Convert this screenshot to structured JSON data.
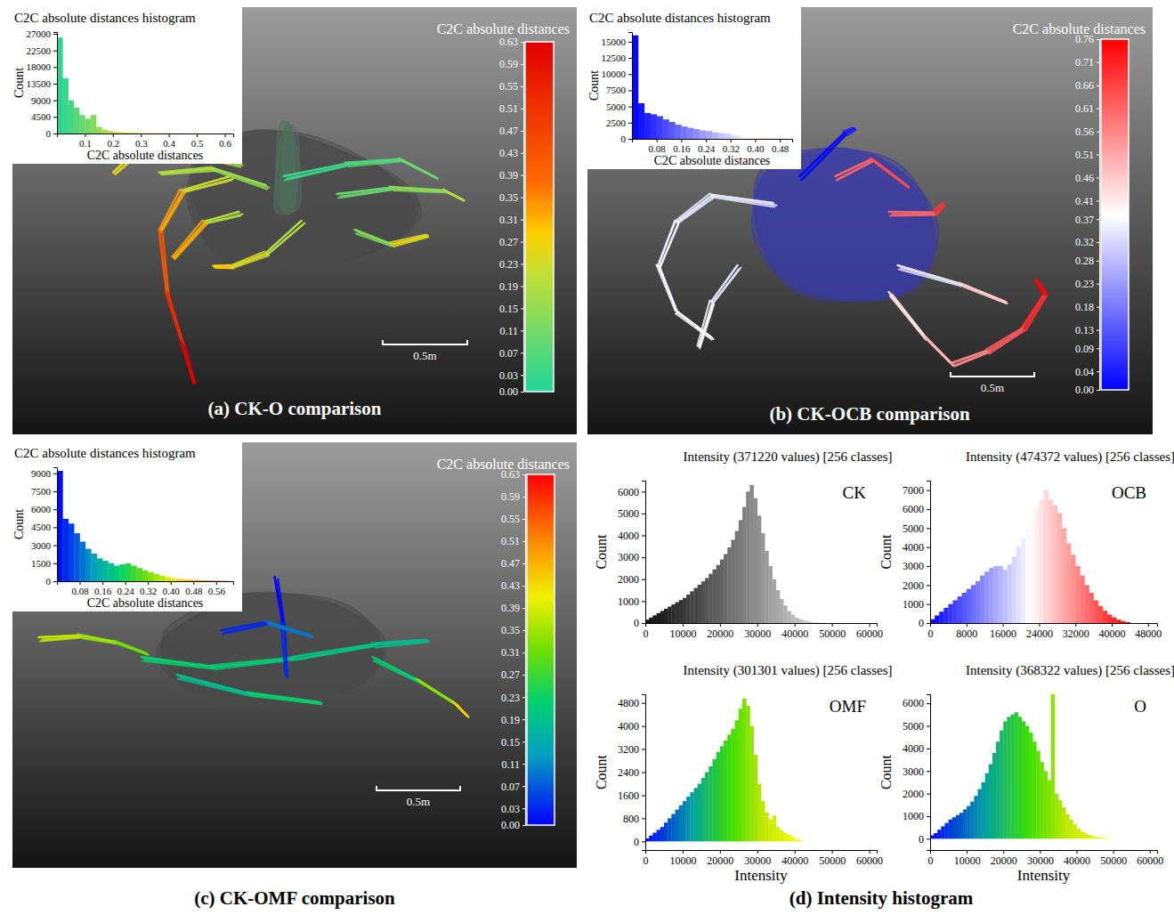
{
  "chart_data": [
    {
      "type": "histogram",
      "caption": "(a) CK-O comparison",
      "title": "C2C absolute distances histogram",
      "x_label": "C2C absolute distances",
      "y_label": "Count",
      "bins": [
        0,
        0.02,
        0.04,
        0.06,
        0.08,
        0.1,
        0.12,
        0.14,
        0.16,
        0.18,
        0.2,
        0.22,
        0.24,
        0.26,
        0.28,
        0.3,
        0.32,
        0.34,
        0.36,
        0.38,
        0.4,
        0.42,
        0.44,
        0.46,
        0.48,
        0.5,
        0.52,
        0.54,
        0.56,
        0.58,
        0.6,
        0.62
      ],
      "counts": [
        26000,
        15000,
        9000,
        7000,
        5000,
        4000,
        5000,
        1800,
        1000,
        700,
        450,
        300,
        200,
        150,
        100,
        80,
        60,
        45,
        35,
        30,
        25,
        20,
        15,
        12,
        10,
        8,
        8,
        6,
        6,
        8,
        20
      ],
      "xlim": [
        0,
        0.63
      ],
      "xticks": [
        0.1,
        0.2,
        0.3,
        0.4,
        0.5,
        0.6
      ],
      "ylim": [
        0,
        27500
      ],
      "yticks": [
        0,
        4500,
        9000,
        13500,
        18000,
        22500,
        27000
      ],
      "colorbar": {
        "title": "C2C absolute distances",
        "range": [
          0,
          0.63
        ],
        "ticks": [
          {
            "value": 0,
            "label": "0.00"
          },
          0.03,
          0.07,
          0.11,
          0.15,
          0.19,
          0.23,
          0.27,
          0.31,
          0.35,
          0.39,
          0.43,
          0.47,
          0.51,
          0.55,
          0.59,
          0.63
        ]
      },
      "scale_bar": "0.5m"
    },
    {
      "type": "histogram",
      "caption": "(b) CK-OCB comparison",
      "title": "C2C absolute distances histogram",
      "x_label": "C2C absolute distances",
      "y_label": "Count",
      "bins": [
        0,
        0.02,
        0.04,
        0.06,
        0.08,
        0.1,
        0.12,
        0.14,
        0.16,
        0.18,
        0.2,
        0.22,
        0.24,
        0.26,
        0.28,
        0.3,
        0.32,
        0.34,
        0.36,
        0.38,
        0.4,
        0.42,
        0.44,
        0.46,
        0.48
      ],
      "counts": [
        16000,
        5500,
        4000,
        3800,
        3500,
        3000,
        2600,
        2200,
        1900,
        1700,
        1500,
        1300,
        1200,
        1000,
        900,
        800,
        600,
        500,
        350,
        250,
        150,
        100,
        60,
        30
      ],
      "xlim": [
        0,
        0.52
      ],
      "xticks": [
        0.08,
        0.16,
        0.24,
        0.32,
        {
          "value": 0.4,
          "label": "0.40"
        },
        0.48
      ],
      "ylim": [
        0,
        16500
      ],
      "yticks": [
        0,
        2500,
        5000,
        7500,
        10000,
        12500,
        15000
      ],
      "colorbar": {
        "title": "C2C absolute distances",
        "range": [
          0,
          0.76
        ],
        "ticks": [
          {
            "value": 0,
            "label": "0.00"
          },
          0.04,
          0.09,
          0.13,
          0.18,
          0.23,
          0.28,
          0.32,
          0.37,
          0.41,
          0.46,
          0.51,
          0.56,
          0.61,
          0.66,
          0.71,
          0.76
        ]
      },
      "scale_bar": "0.5m"
    },
    {
      "type": "histogram",
      "caption": "(c) CK-OMF comparison",
      "title": "C2C absolute distances histogram",
      "x_label": "C2C absolute distances",
      "y_label": "Count",
      "bins": [
        0,
        0.02,
        0.04,
        0.06,
        0.08,
        0.1,
        0.12,
        0.14,
        0.16,
        0.18,
        0.2,
        0.22,
        0.24,
        0.26,
        0.28,
        0.3,
        0.32,
        0.34,
        0.36,
        0.38,
        0.4,
        0.42,
        0.44,
        0.46,
        0.48,
        0.5,
        0.52,
        0.54,
        0.56,
        0.58,
        0.6,
        0.62
      ],
      "counts": [
        9200,
        5200,
        4800,
        4000,
        3300,
        2700,
        2300,
        1900,
        1700,
        1500,
        1300,
        1400,
        1500,
        1300,
        1100,
        900,
        750,
        600,
        450,
        350,
        250,
        200,
        150,
        120,
        90,
        70,
        50,
        40,
        30,
        20,
        10
      ],
      "xlim": [
        0,
        0.62
      ],
      "xticks": [
        0.08,
        0.16,
        0.24,
        0.32,
        {
          "value": 0.4,
          "label": "0.40"
        },
        0.48,
        0.56
      ],
      "ylim": [
        0,
        9500
      ],
      "yticks": [
        0,
        1500,
        3000,
        4500,
        6000,
        7500,
        9000
      ],
      "colorbar": {
        "title": "C2C absolute distances",
        "range": [
          0,
          0.63
        ],
        "ticks": [
          {
            "value": 0,
            "label": "0.00"
          },
          0.03,
          0.07,
          0.11,
          0.15,
          0.19,
          0.23,
          0.27,
          0.31,
          0.35,
          0.39,
          0.43,
          0.47,
          0.51,
          0.55,
          0.59,
          0.63
        ]
      },
      "scale_bar": "0.5m"
    },
    {
      "type": "histogram",
      "title": "Intensity (371220 values) [256 classes]",
      "label": "CK",
      "y_label": "Count",
      "bins": [
        0,
        1000,
        2000,
        3000,
        4000,
        5000,
        6000,
        7000,
        8000,
        9000,
        10000,
        11000,
        12000,
        13000,
        14000,
        15000,
        16000,
        17000,
        18000,
        19000,
        20000,
        21000,
        22000,
        23000,
        24000,
        25000,
        26000,
        27000,
        28000,
        29000,
        30000,
        31000,
        32000,
        33000,
        34000,
        35000,
        36000,
        37000,
        38000,
        39000,
        40000,
        41000,
        42000,
        43000,
        44000,
        45000,
        46000,
        47000,
        48000,
        49000,
        50000
      ],
      "counts": [
        150,
        250,
        350,
        450,
        550,
        650,
        750,
        850,
        950,
        1050,
        1150,
        1300,
        1450,
        1600,
        1750,
        1900,
        2050,
        2250,
        2450,
        2650,
        2900,
        3150,
        3450,
        3800,
        4200,
        4700,
        5300,
        6000,
        6300,
        5700,
        4900,
        4100,
        3300,
        2600,
        2000,
        1500,
        1100,
        800,
        550,
        380,
        260,
        180,
        120,
        80,
        55,
        35,
        20,
        12,
        8,
        5
      ],
      "xlim": [
        0,
        62000
      ],
      "xticks": [
        0,
        10000,
        20000,
        30000,
        40000,
        50000,
        60000
      ],
      "ylim": [
        0,
        6500
      ],
      "yticks": [
        0,
        1000,
        2000,
        3000,
        4000,
        5000,
        6000
      ]
    },
    {
      "type": "histogram",
      "title": "Intensity (474372 values) [256 classes]",
      "label": "OCB",
      "y_label": "Count",
      "bins": [
        0,
        1000,
        2000,
        3000,
        4000,
        5000,
        6000,
        7000,
        8000,
        9000,
        10000,
        11000,
        12000,
        13000,
        14000,
        15000,
        16000,
        17000,
        18000,
        19000,
        20000,
        21000,
        22000,
        23000,
        24000,
        25000,
        26000,
        27000,
        28000,
        29000,
        30000,
        31000,
        32000,
        33000,
        34000,
        35000,
        36000,
        37000,
        38000,
        39000,
        40000,
        41000,
        42000,
        43000,
        44000
      ],
      "counts": [
        200,
        400,
        600,
        800,
        1000,
        1200,
        1400,
        1600,
        1800,
        2000,
        2200,
        2500,
        2700,
        2900,
        3000,
        3000,
        2800,
        3100,
        3500,
        4000,
        4500,
        5000,
        5500,
        6000,
        6500,
        7000,
        6500,
        6200,
        5800,
        5000,
        4200,
        3600,
        3000,
        2500,
        2000,
        1600,
        1200,
        900,
        650,
        450,
        300,
        180,
        100,
        50
      ],
      "xlim": [
        0,
        50000
      ],
      "xticks": [
        0,
        8000,
        16000,
        24000,
        32000,
        40000,
        48000
      ],
      "ylim": [
        0,
        7500
      ],
      "yticks": [
        0,
        1000,
        2000,
        3000,
        4000,
        5000,
        6000,
        7000
      ]
    },
    {
      "type": "histogram",
      "title": "Intensity (301301 values) [256 classes]",
      "label": "OMF",
      "x_label": "Intensity",
      "y_label": "Count",
      "bins": [
        0,
        1000,
        2000,
        3000,
        4000,
        5000,
        6000,
        7000,
        8000,
        9000,
        10000,
        11000,
        12000,
        13000,
        14000,
        15000,
        16000,
        17000,
        18000,
        19000,
        20000,
        21000,
        22000,
        23000,
        24000,
        25000,
        26000,
        27000,
        28000,
        29000,
        30000,
        31000,
        32000,
        33000,
        34000,
        35000,
        36000,
        37000,
        38000,
        39000,
        40000,
        41000,
        42000
      ],
      "counts": [
        100,
        200,
        300,
        400,
        500,
        650,
        800,
        950,
        1100,
        1250,
        1400,
        1550,
        1700,
        1850,
        2000,
        2200,
        2400,
        2600,
        2850,
        3100,
        3300,
        3500,
        3700,
        3900,
        4200,
        4600,
        4950,
        4700,
        4000,
        3000,
        2000,
        1400,
        1000,
        750,
        900,
        500,
        380,
        300,
        220,
        150,
        80,
        40
      ],
      "xlim": [
        0,
        62000
      ],
      "xticks": [
        0,
        10000,
        20000,
        30000,
        40000,
        50000,
        60000
      ],
      "ylim": [
        -300,
        5100
      ],
      "yticks": [
        0,
        800,
        1600,
        2400,
        3200,
        4000,
        4800
      ]
    },
    {
      "type": "histogram",
      "title": "Intensity (368322 values) [256 classes]",
      "label": "O",
      "x_label": "Intensity",
      "y_label": "Count",
      "bins": [
        0,
        1000,
        2000,
        3000,
        4000,
        5000,
        6000,
        7000,
        8000,
        9000,
        10000,
        11000,
        12000,
        13000,
        14000,
        15000,
        16000,
        17000,
        18000,
        19000,
        20000,
        21000,
        22000,
        23000,
        24000,
        25000,
        26000,
        27000,
        28000,
        29000,
        30000,
        31000,
        32000,
        33000,
        34000,
        35000,
        36000,
        37000,
        38000,
        39000,
        40000,
        41000,
        42000,
        43000,
        44000,
        45000,
        46000,
        47000,
        48000,
        49000,
        50000
      ],
      "counts": [
        150,
        250,
        400,
        550,
        700,
        850,
        950,
        1050,
        1150,
        1300,
        1450,
        1650,
        1900,
        2200,
        2500,
        2900,
        3300,
        3800,
        4300,
        4800,
        5200,
        5400,
        5500,
        5600,
        5400,
        5200,
        5000,
        4700,
        4300,
        3900,
        3400,
        3000,
        2600,
        6500,
        2000,
        1700,
        1400,
        1100,
        850,
        650,
        450,
        330,
        240,
        170,
        120,
        80,
        50,
        30,
        20,
        10
      ],
      "xlim": [
        0,
        62000
      ],
      "xticks": [
        0,
        10000,
        20000,
        30000,
        40000,
        50000,
        60000
      ],
      "ylim": [
        -500,
        6400
      ],
      "yticks": [
        0,
        1000,
        2000,
        3000,
        4000,
        5000,
        6000
      ]
    }
  ],
  "group_caption": "(d) Intensity histogram"
}
